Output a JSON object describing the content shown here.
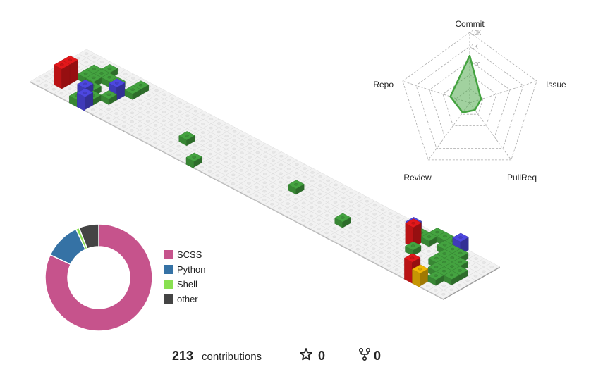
{
  "chart_data": [
    {
      "type": "isometric-bar",
      "title": "",
      "description_source": "contribution calendar (53 weeks x 7 days)",
      "weeks": 53,
      "days": 7,
      "cells": [
        {
          "week": 2,
          "day": 1,
          "count": 3,
          "lang": "SCSS"
        },
        {
          "week": 2,
          "day": 2,
          "count": 3,
          "lang": "SCSS"
        },
        {
          "week": 3,
          "day": 3,
          "count": 1,
          "lang": "SCSS"
        },
        {
          "week": 3,
          "day": 4,
          "count": 1,
          "lang": "SCSS"
        },
        {
          "week": 4,
          "day": 3,
          "count": 1,
          "lang": "SCSS"
        },
        {
          "week": 4,
          "day": 4,
          "count": 1,
          "lang": "SCSS"
        },
        {
          "week": 4,
          "day": 5,
          "count": 1,
          "lang": "SCSS"
        },
        {
          "week": 5,
          "day": 0,
          "count": 1,
          "lang": "SCSS"
        },
        {
          "week": 5,
          "day": 1,
          "count": 2,
          "lang": "Python"
        },
        {
          "week": 5,
          "day": 2,
          "count": 1,
          "lang": "SCSS"
        },
        {
          "week": 5,
          "day": 4,
          "count": 1,
          "lang": "SCSS"
        },
        {
          "week": 6,
          "day": 0,
          "count": 2,
          "lang": "Python"
        },
        {
          "week": 6,
          "day": 1,
          "count": 1,
          "lang": "SCSS"
        },
        {
          "week": 6,
          "day": 4,
          "count": 1,
          "lang": "SCSS"
        },
        {
          "week": 7,
          "day": 2,
          "count": 1,
          "lang": "SCSS"
        },
        {
          "week": 7,
          "day": 3,
          "count": 2,
          "lang": "Python"
        },
        {
          "week": 8,
          "day": 4,
          "count": 1,
          "lang": "SCSS"
        },
        {
          "week": 8,
          "day": 5,
          "count": 1,
          "lang": "SCSS"
        },
        {
          "week": 17,
          "day": 2,
          "count": 1,
          "lang": "SCSS"
        },
        {
          "week": 20,
          "day": 0,
          "count": 1,
          "lang": "SCSS"
        },
        {
          "week": 30,
          "day": 3,
          "count": 1,
          "lang": "SCSS"
        },
        {
          "week": 37,
          "day": 2,
          "count": 1,
          "lang": "SCSS"
        },
        {
          "week": 43,
          "day": 5,
          "count": 2,
          "lang": "Python"
        },
        {
          "week": 44,
          "day": 4,
          "count": 3,
          "lang": "SCSS"
        },
        {
          "week": 44,
          "day": 5,
          "count": 1,
          "lang": "SCSS"
        },
        {
          "week": 45,
          "day": 3,
          "count": 1,
          "lang": "SCSS"
        },
        {
          "week": 45,
          "day": 5,
          "count": 1,
          "lang": "SCSS"
        },
        {
          "week": 45,
          "day": 6,
          "count": 1,
          "lang": "SCSS"
        },
        {
          "week": 46,
          "day": 6,
          "count": 1,
          "lang": "SCSS"
        },
        {
          "week": 47,
          "day": 5,
          "count": 1,
          "lang": "SCSS"
        },
        {
          "week": 47,
          "day": 6,
          "count": 1,
          "lang": "SCSS"
        },
        {
          "week": 48,
          "day": 0,
          "count": 3,
          "lang": "SCSS"
        },
        {
          "week": 48,
          "day": 3,
          "count": 1,
          "lang": "SCSS"
        },
        {
          "week": 48,
          "day": 4,
          "count": 1,
          "lang": "SCSS"
        },
        {
          "week": 48,
          "day": 5,
          "count": 1,
          "lang": "SCSS"
        },
        {
          "week": 48,
          "day": 6,
          "count": 2,
          "lang": "Python"
        },
        {
          "week": 49,
          "day": 0,
          "count": 2,
          "lang": "other-yellow"
        },
        {
          "week": 49,
          "day": 2,
          "count": 1,
          "lang": "SCSS"
        },
        {
          "week": 49,
          "day": 3,
          "count": 1,
          "lang": "SCSS"
        },
        {
          "week": 49,
          "day": 4,
          "count": 1,
          "lang": "SCSS"
        },
        {
          "week": 49,
          "day": 5,
          "count": 1,
          "lang": "SCSS"
        },
        {
          "week": 50,
          "day": 1,
          "count": 1,
          "lang": "SCSS"
        },
        {
          "week": 50,
          "day": 2,
          "count": 1,
          "lang": "SCSS"
        },
        {
          "week": 50,
          "day": 3,
          "count": 1,
          "lang": "SCSS"
        },
        {
          "week": 50,
          "day": 4,
          "count": 1,
          "lang": "SCSS"
        },
        {
          "week": 51,
          "day": 2,
          "count": 1,
          "lang": "SCSS"
        },
        {
          "week": 51,
          "day": 3,
          "count": 1,
          "lang": "SCSS"
        }
      ]
    },
    {
      "type": "radar",
      "title": "",
      "axes": [
        "Commit",
        "Issue",
        "PullReq",
        "Review",
        "Repo"
      ],
      "scale": "log",
      "tick_labels": [
        "100",
        "1K",
        "10K"
      ],
      "values": [
        300,
        3,
        2,
        3,
        9
      ],
      "color": "#44a340"
    },
    {
      "type": "pie",
      "title": "",
      "labels": [
        "SCSS",
        "Python",
        "Shell",
        "other"
      ],
      "values": [
        82,
        11,
        1,
        6
      ],
      "colors": [
        "#c6538c",
        "#3572a5",
        "#89e051",
        "#444444"
      ],
      "donut": true,
      "legend": "right"
    }
  ],
  "colors": {
    "SCSS": "#44a340",
    "Python": "#4d47e0",
    "red": "#e3171a",
    "other-yellow": "#f2b705",
    "empty": "#ededed"
  },
  "stats": {
    "contributions": "213",
    "contributions_label": "contributions",
    "stars": "0",
    "forks": "0"
  },
  "icons": {
    "star": "star-icon",
    "fork": "fork-icon"
  }
}
